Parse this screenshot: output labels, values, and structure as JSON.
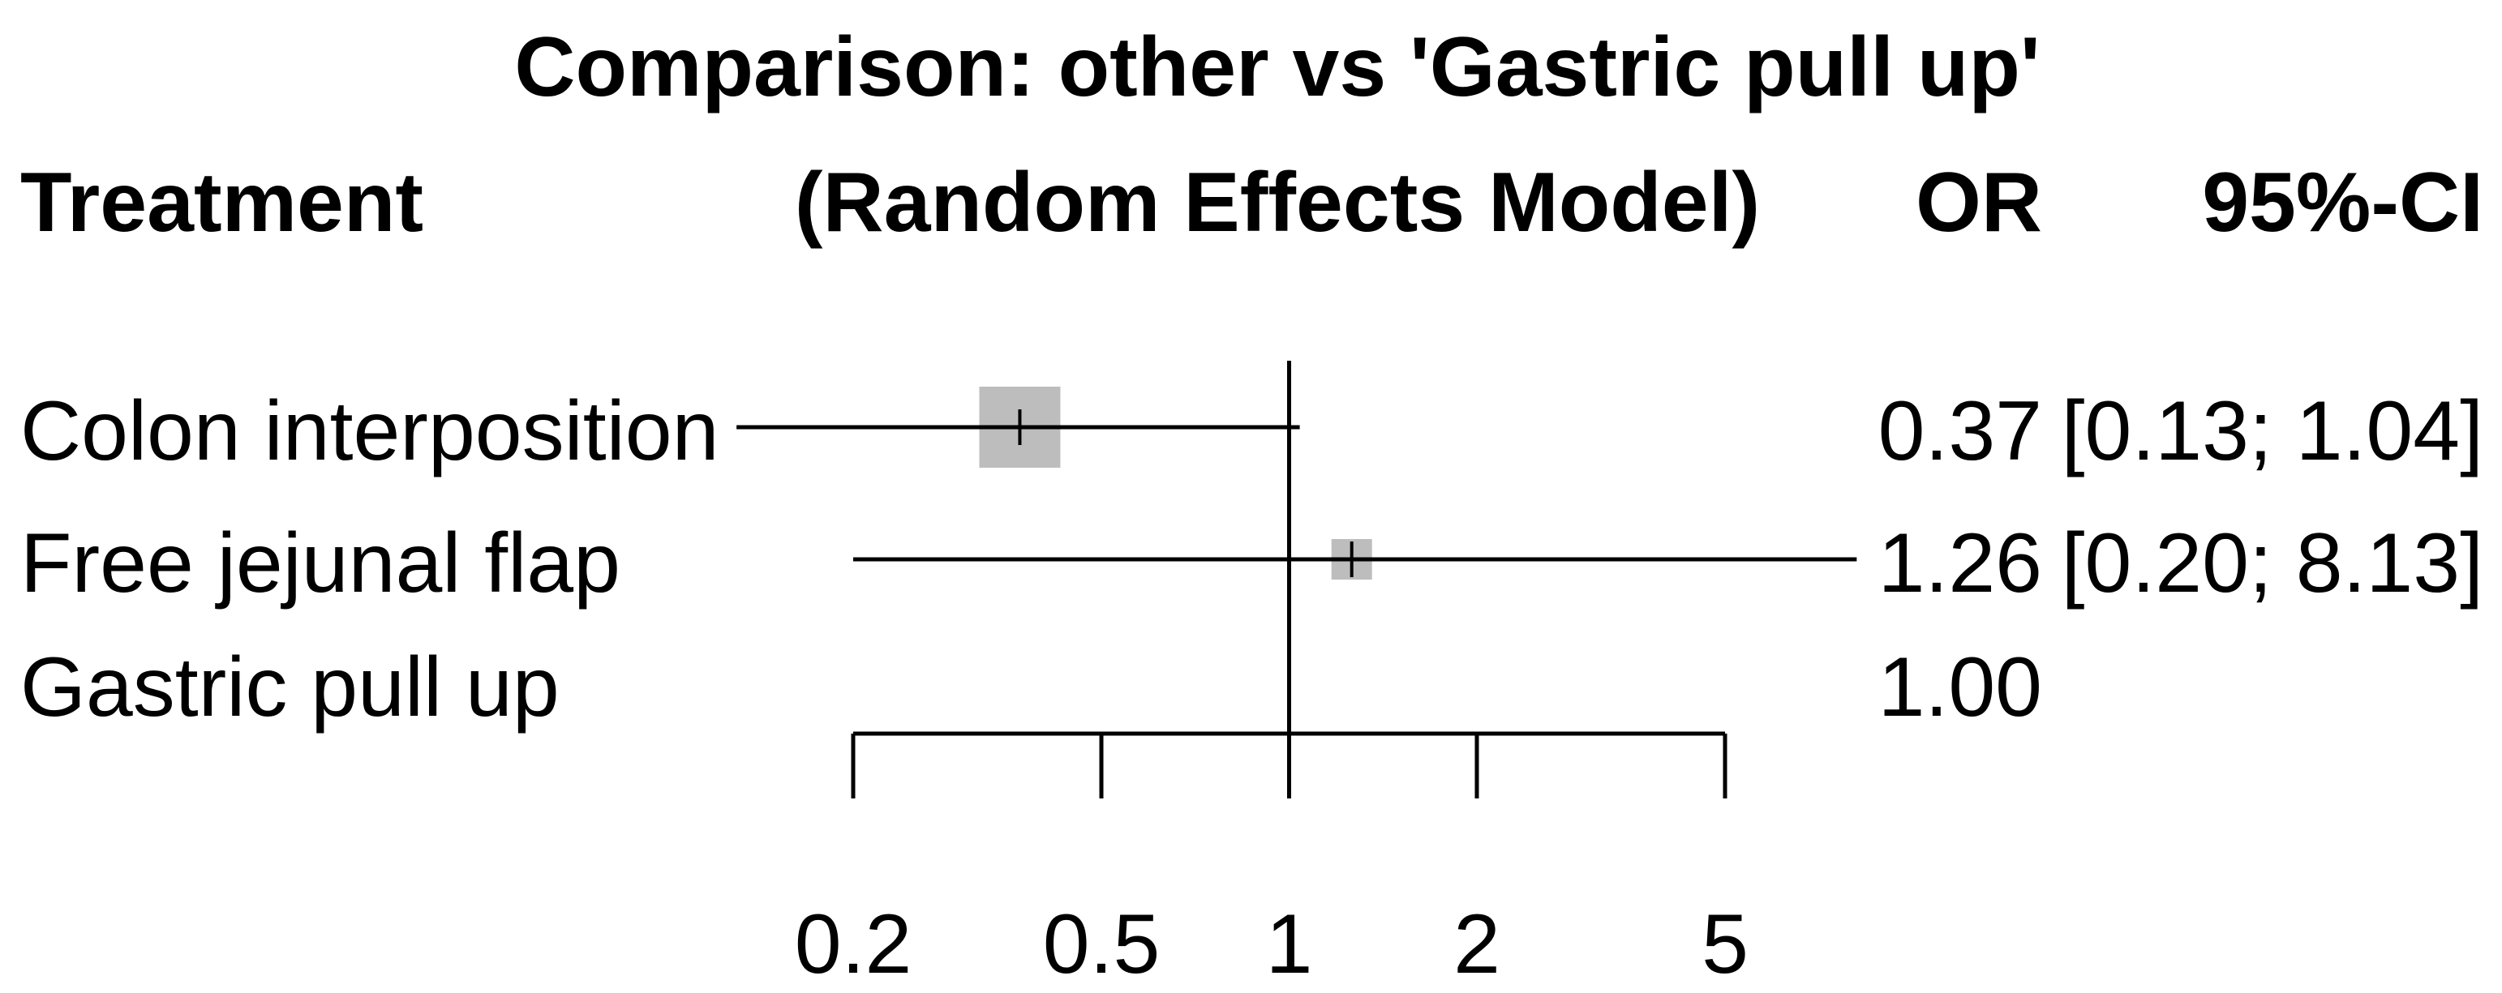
{
  "chart_data": {
    "type": "forest",
    "title": "Comparison: other vs 'Gastric pull up'",
    "subtitle": "(Random Effects Model)",
    "headers": {
      "treatment": "Treatment",
      "estimate": "OR",
      "ci": "95%-CI"
    },
    "rows": [
      {
        "treatment": "Colon interposition",
        "or": 0.37,
        "ci_low": 0.13,
        "ci_high": 1.04,
        "or_text": "0.37",
        "ci_text": "[0.13; 1.04]",
        "weight": 1.0
      },
      {
        "treatment": "Free jejunal flap",
        "or": 1.26,
        "ci_low": 0.2,
        "ci_high": 8.13,
        "or_text": "1.26",
        "ci_text": "[0.20; 8.13]",
        "weight": 0.25
      },
      {
        "treatment": "Gastric pull up",
        "or": 1.0,
        "ci_low": null,
        "ci_high": null,
        "or_text": "1.00",
        "ci_text": "",
        "weight": null
      }
    ],
    "x_scale": "log",
    "xlim": [
      0.2,
      5
    ],
    "x_ticks": [
      0.2,
      0.5,
      1,
      2,
      5
    ],
    "x_tick_labels": [
      "0.2",
      "0.5",
      "1",
      "2",
      "5"
    ],
    "reference_line": 1
  },
  "colors": {
    "box": "#bdbdbd",
    "line": "#000000"
  }
}
